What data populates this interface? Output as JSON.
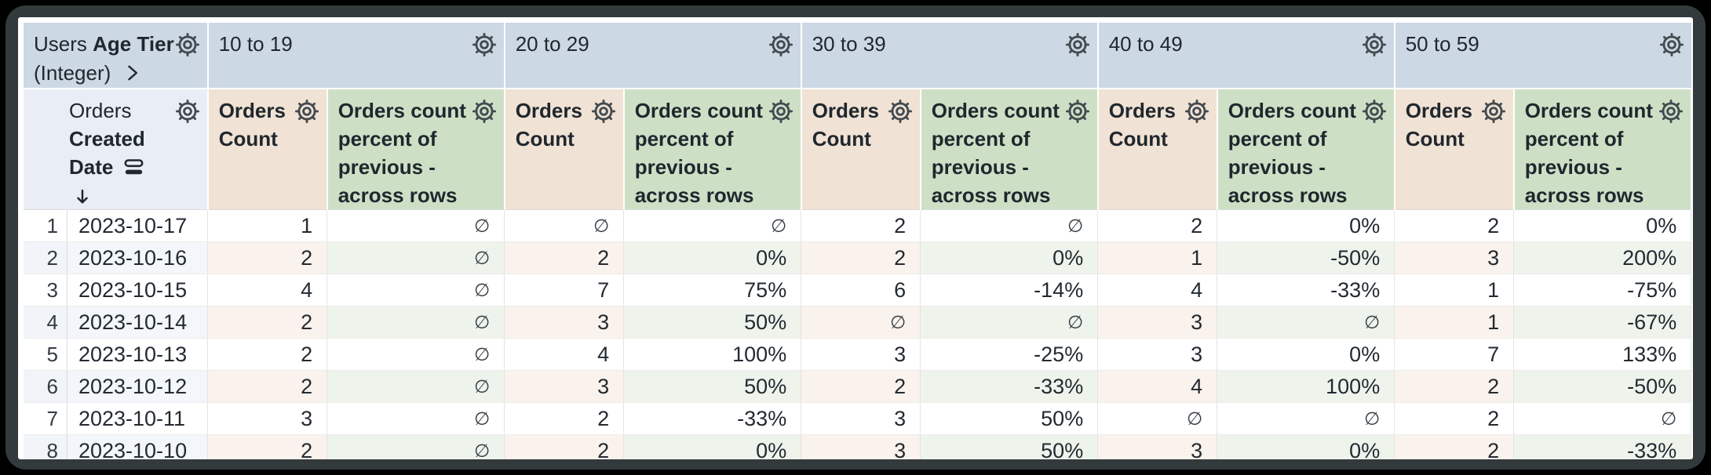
{
  "header": {
    "pivot_dimension": {
      "view": "Users",
      "field": "Age Tier",
      "type": "(Integer)"
    },
    "row_dimension": {
      "view": "Orders",
      "field": "Created Date"
    },
    "pivot_values": [
      "10 to 19",
      "20 to 29",
      "30 to 39",
      "40 to 49",
      "50 to 59"
    ],
    "measure_labels": [
      "Orders Count",
      "Orders count percent of previous - across rows"
    ]
  },
  "icons": {
    "gear": "settings-gear",
    "expand": "chevron-right",
    "rows": "cell-visualization",
    "sort_desc": "arrow-down",
    "null_glyph": "∅"
  },
  "rows": [
    {
      "n": "1",
      "date": "2023-10-17",
      "values": [
        "1",
        "∅",
        "∅",
        "∅",
        "2",
        "∅",
        "2",
        "0%",
        "2",
        "0%"
      ]
    },
    {
      "n": "2",
      "date": "2023-10-16",
      "values": [
        "2",
        "∅",
        "2",
        "0%",
        "2",
        "0%",
        "1",
        "-50%",
        "3",
        "200%"
      ]
    },
    {
      "n": "3",
      "date": "2023-10-15",
      "values": [
        "4",
        "∅",
        "7",
        "75%",
        "6",
        "-14%",
        "4",
        "-33%",
        "1",
        "-75%"
      ]
    },
    {
      "n": "4",
      "date": "2023-10-14",
      "values": [
        "2",
        "∅",
        "3",
        "50%",
        "∅",
        "∅",
        "3",
        "∅",
        "1",
        "-67%"
      ]
    },
    {
      "n": "5",
      "date": "2023-10-13",
      "values": [
        "2",
        "∅",
        "4",
        "100%",
        "3",
        "-25%",
        "3",
        "0%",
        "7",
        "133%"
      ]
    },
    {
      "n": "6",
      "date": "2023-10-12",
      "values": [
        "2",
        "∅",
        "3",
        "50%",
        "2",
        "-33%",
        "4",
        "100%",
        "2",
        "-50%"
      ]
    },
    {
      "n": "7",
      "date": "2023-10-11",
      "values": [
        "3",
        "∅",
        "2",
        "-33%",
        "3",
        "50%",
        "∅",
        "∅",
        "2",
        "∅"
      ]
    },
    {
      "n": "8",
      "date": "2023-10-10",
      "values": [
        "2",
        "∅",
        "2",
        "0%",
        "3",
        "50%",
        "3",
        "0%",
        "2",
        "-33%"
      ]
    }
  ]
}
